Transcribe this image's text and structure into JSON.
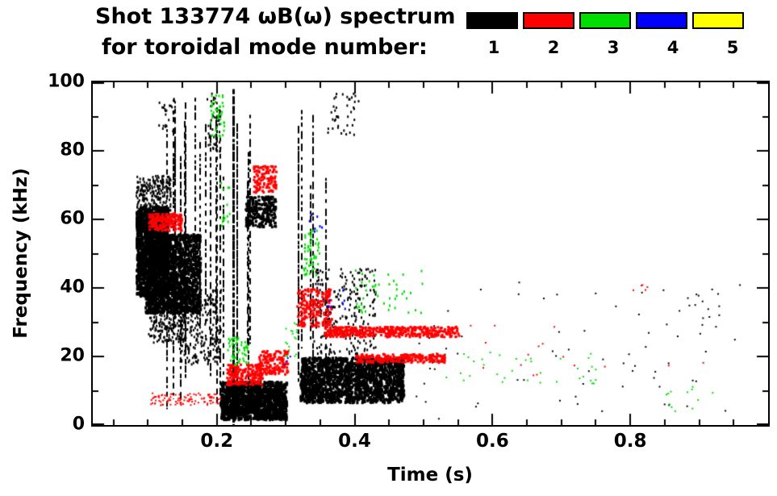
{
  "chart": {
    "title_line1": "Shot 133774 ωB(ω) spectrum",
    "title_line2": "for toroidal mode number:",
    "xlabel": "Time (s)",
    "ylabel": "Frequency (kHz)"
  },
  "chart_data": {
    "type": "scatter",
    "description": "Spectrogram-style scatter of mode activity vs time and frequency; color encodes toroidal mode number n=1..5 (black, red, green, blue, yellow). Dense black n=1 activity at 0.08-0.19 s between 30-75 kHz, vertical broadband bursts near 0.13-0.23 s and 0.32-0.36 s, dense low-frequency black bands 0.21-0.30 s (2-13 kHz) and 0.32-0.47 s (7-20 kHz). Red n=2 bands near 60 kHz (0.10-0.15 s), chirping down from 40 to 26-29 kHz (0.32-0.55 s) and 19-21 kHz (0.40-0.53 s). Sparse green n=3 and very sparse blue n=4 points; no visible yellow n=5 points.",
    "title_line1": "Shot 133774 ωB(ω) spectrum",
    "title_line2": "for toroidal mode number:",
    "xlabel": "Time (s)",
    "ylabel": "Frequency (kHz)",
    "xlim": [
      0.02,
      1.0
    ],
    "ylim": [
      0,
      100
    ],
    "x_ticks": [
      0.2,
      0.4,
      0.6,
      0.8
    ],
    "x_tick_labels": [
      "0.2",
      "0.4",
      "0.6",
      "0.8"
    ],
    "y_ticks": [
      0,
      20,
      40,
      60,
      80,
      100
    ],
    "y_tick_labels": [
      "0",
      "20",
      "40",
      "60",
      "80",
      "100"
    ],
    "x_minor_step": 0.05,
    "y_minor_step": 10,
    "grid": false,
    "legend_position": "top-right",
    "frame_color": "#000000",
    "series": [
      {
        "label": "1",
        "color": "#000000",
        "clusters": [
          {
            "t": [
              0.082,
              0.128
            ],
            "f": [
              38,
              64
            ],
            "n": 1300,
            "w": 3,
            "h": 4
          },
          {
            "t": [
              0.095,
              0.175
            ],
            "f": [
              33,
              56
            ],
            "n": 1400,
            "w": 3,
            "h": 4
          },
          {
            "t": [
              0.082,
              0.132
            ],
            "f": [
              60,
              73
            ],
            "n": 280,
            "w": 2,
            "h": 3
          },
          {
            "t": [
              0.1,
              0.155
            ],
            "f": [
              24,
              36
            ],
            "n": 220,
            "w": 2,
            "h": 3
          },
          {
            "t": [
              0.145,
              0.205
            ],
            "f": [
              18,
              40
            ],
            "n": 260,
            "w": 2,
            "h": 3
          },
          {
            "shape": "vstreaks",
            "t": [
              0.125,
              0.21
            ],
            "f": [
              4,
              96
            ],
            "n": 16
          },
          {
            "shape": "vline",
            "t": [
              0.222
            ],
            "f": [
              0,
              98
            ],
            "w": 3
          },
          {
            "shape": "vline",
            "t": [
              0.2285
            ],
            "f": [
              3,
              88
            ],
            "w": 2
          },
          {
            "t": [
              0.205,
              0.3
            ],
            "f": [
              2,
              13
            ],
            "n": 1300,
            "w": 3,
            "h": 4
          },
          {
            "t": [
              0.24,
              0.285
            ],
            "f": [
              58,
              67
            ],
            "n": 280,
            "w": 3,
            "h": 3
          },
          {
            "shape": "vstreaks",
            "t": [
              0.235,
              0.258
            ],
            "f": [
              8,
              95
            ],
            "n": 3
          },
          {
            "shape": "vstreaks",
            "t": [
              0.315,
              0.36
            ],
            "f": [
              4,
              97
            ],
            "n": 6
          },
          {
            "t": [
              0.32,
              0.47
            ],
            "f": [
              7,
              20
            ],
            "n": 1600,
            "w": 3,
            "h": 4
          },
          {
            "t": [
              0.34,
              0.43
            ],
            "f": [
              21,
              46
            ],
            "n": 240,
            "w": 2,
            "h": 3
          },
          {
            "t": [
              0.36,
              0.405
            ],
            "f": [
              85,
              97
            ],
            "n": 40,
            "w": 2,
            "h": 3
          },
          {
            "t": [
              0.185,
              0.205
            ],
            "f": [
              80,
              97
            ],
            "n": 40,
            "w": 2,
            "h": 3
          },
          {
            "t": [
              0.115,
              0.14
            ],
            "f": [
              86,
              96
            ],
            "n": 25,
            "w": 2,
            "h": 3
          },
          {
            "t": [
              0.48,
              0.97
            ],
            "f": [
              2,
              42
            ],
            "n": 70,
            "w": 2,
            "h": 2
          },
          {
            "t": [
              0.88,
              0.93
            ],
            "f": [
              28,
              40
            ],
            "n": 12,
            "w": 2,
            "h": 2
          }
        ]
      },
      {
        "label": "2",
        "color": "#ff0000",
        "clusters": [
          {
            "t": [
              0.1,
              0.148
            ],
            "f": [
              57,
              62
            ],
            "n": 190,
            "w": 3,
            "h": 3
          },
          {
            "t": [
              0.252,
              0.285
            ],
            "f": [
              68,
              76
            ],
            "n": 120,
            "w": 3,
            "h": 3
          },
          {
            "t": [
              0.315,
              0.365
            ],
            "f": [
              29,
              40
            ],
            "n": 190,
            "w": 3,
            "h": 3
          },
          {
            "t": [
              0.355,
              0.55
            ],
            "f": [
              26,
              29
            ],
            "n": 420,
            "w": 3,
            "h": 3
          },
          {
            "t": [
              0.4,
              0.53
            ],
            "f": [
              18.5,
              21
            ],
            "n": 230,
            "w": 3,
            "h": 3
          },
          {
            "t": [
              0.213,
              0.265
            ],
            "f": [
              12,
              18
            ],
            "n": 200,
            "w": 3,
            "h": 3
          },
          {
            "t": [
              0.26,
              0.302
            ],
            "f": [
              15,
              22
            ],
            "n": 150,
            "w": 3,
            "h": 3
          },
          {
            "t": [
              0.103,
              0.205
            ],
            "f": [
              6,
              9.5
            ],
            "n": 100,
            "w": 2,
            "h": 2
          },
          {
            "t": [
              0.55,
              0.95
            ],
            "f": [
              14,
              30
            ],
            "n": 16,
            "w": 2,
            "h": 2
          },
          {
            "t": [
              0.8,
              0.83
            ],
            "f": [
              38,
              42
            ],
            "n": 5,
            "w": 2,
            "h": 2
          }
        ]
      },
      {
        "label": "3",
        "color": "#00dd00",
        "clusters": [
          {
            "t": [
              0.19,
              0.21
            ],
            "f": [
              84,
              97
            ],
            "n": 40,
            "w": 2,
            "h": 3
          },
          {
            "t": [
              0.205,
              0.218
            ],
            "f": [
              58,
              72
            ],
            "n": 14,
            "w": 2,
            "h": 3
          },
          {
            "t": [
              0.325,
              0.348
            ],
            "f": [
              44,
              57
            ],
            "n": 55,
            "w": 2,
            "h": 3
          },
          {
            "t": [
              0.4,
              0.5
            ],
            "f": [
              33,
              46
            ],
            "n": 45,
            "w": 2,
            "h": 3
          },
          {
            "t": [
              0.215,
              0.245
            ],
            "f": [
              18,
              26
            ],
            "n": 50,
            "w": 2,
            "h": 3
          },
          {
            "t": [
              0.298,
              0.318
            ],
            "f": [
              20,
              30
            ],
            "n": 18,
            "w": 2,
            "h": 2
          },
          {
            "t": [
              0.52,
              0.75
            ],
            "f": [
              12,
              22
            ],
            "n": 35,
            "w": 2,
            "h": 2
          },
          {
            "t": [
              0.85,
              0.94
            ],
            "f": [
              4,
              12
            ],
            "n": 12,
            "w": 2,
            "h": 2
          }
        ]
      },
      {
        "label": "4",
        "color": "#0000ff",
        "clusters": [
          {
            "t": [
              0.33,
              0.352
            ],
            "f": [
              55,
              62
            ],
            "n": 7,
            "w": 2,
            "h": 3
          },
          {
            "t": [
              0.36,
              0.388
            ],
            "f": [
              34,
              40
            ],
            "n": 7,
            "w": 2,
            "h": 3
          },
          {
            "t": [
              0.295,
              0.308
            ],
            "f": [
              17,
              22
            ],
            "n": 4,
            "w": 2,
            "h": 2
          }
        ]
      },
      {
        "label": "5",
        "color": "#ffff00",
        "clusters": []
      }
    ]
  }
}
